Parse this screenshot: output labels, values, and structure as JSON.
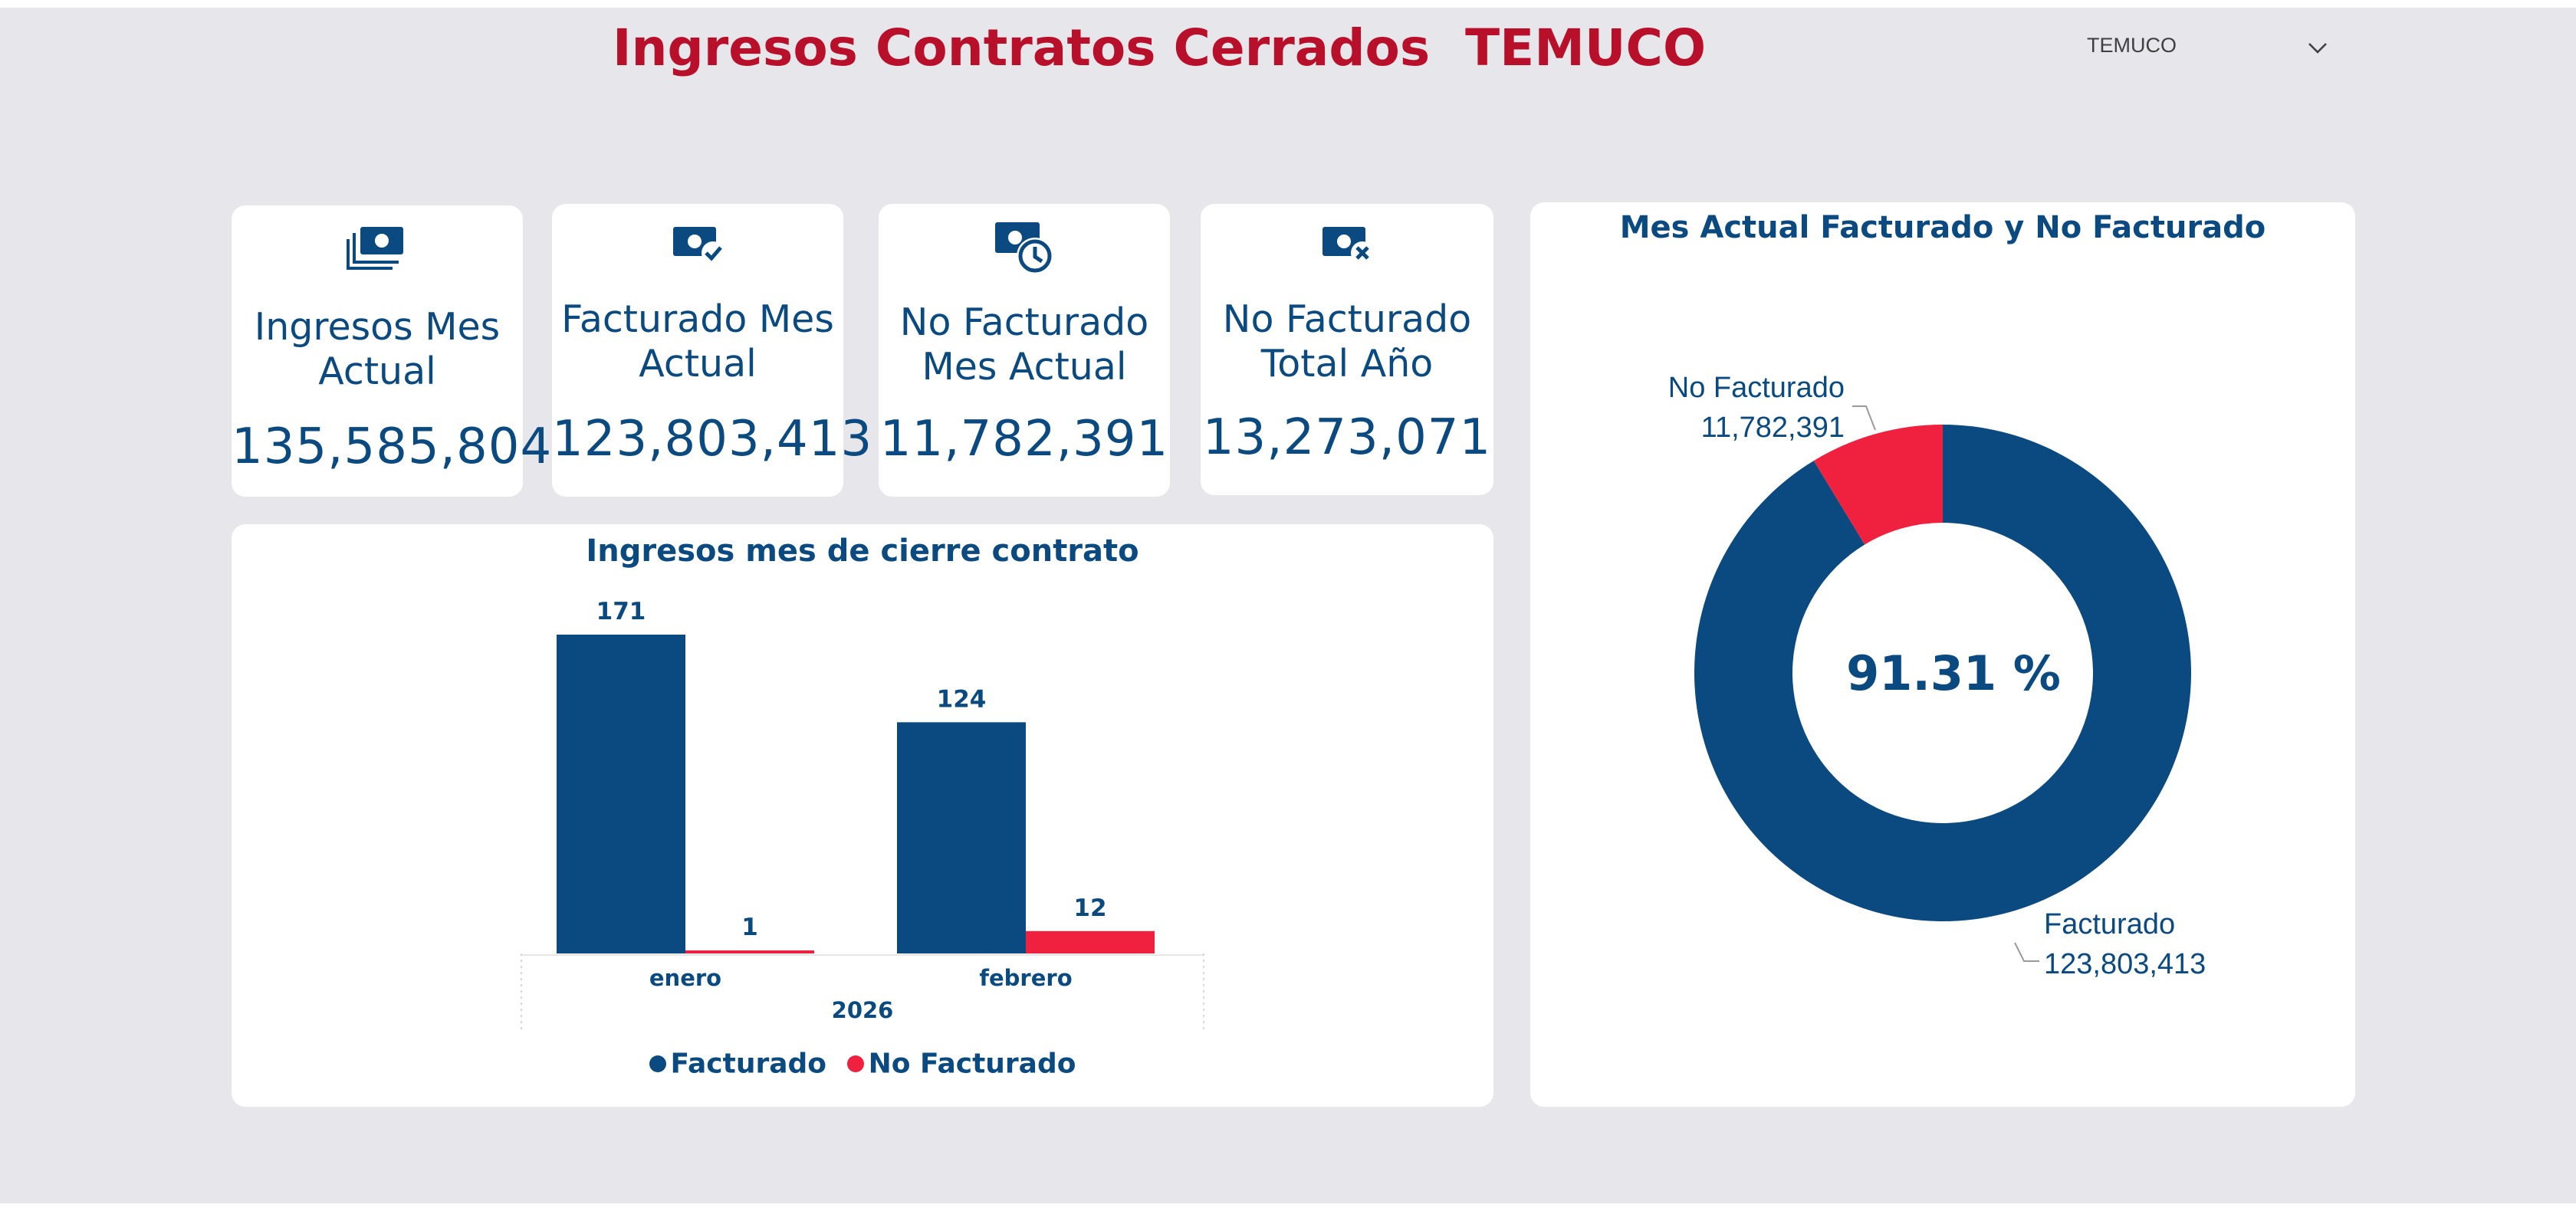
{
  "header": {
    "title": "Ingresos Contratos Cerrados  TEMUCO"
  },
  "filter": {
    "selected": "TEMUCO"
  },
  "kpis": [
    {
      "label_line1": "Ingresos Mes",
      "label_line2": "Actual",
      "value": "135,585,804",
      "icon": "money-stack-icon"
    },
    {
      "label_line1": "Facturado Mes",
      "label_line2": "Actual",
      "value": "123,803,413",
      "icon": "money-check-icon"
    },
    {
      "label_line1": "No Facturado",
      "label_line2": "Mes Actual",
      "value": "11,782,391",
      "icon": "money-clock-icon"
    },
    {
      "label_line1": "No Facturado",
      "label_line2": "Total Año",
      "value": "13,273,071",
      "icon": "money-x-icon"
    }
  ],
  "colors": {
    "navy": "#0b4a80",
    "red": "#f0213f",
    "title_red": "#b8102a"
  },
  "chart_data": [
    {
      "type": "bar",
      "title": "Ingresos mes de cierre contrato",
      "categories": [
        "enero",
        "febrero"
      ],
      "group_label": "2026",
      "series": [
        {
          "name": "Facturado",
          "values": [
            171,
            124
          ],
          "labels": [
            "171",
            "124"
          ],
          "color": "#0b4a80"
        },
        {
          "name": "No Facturado",
          "values": [
            1,
            12
          ],
          "labels": [
            "1",
            "12"
          ],
          "color": "#f0213f"
        }
      ],
      "ylim": [
        0,
        171
      ],
      "legend": "bottom-center"
    },
    {
      "type": "pie",
      "title": "Mes Actual Facturado y No Facturado",
      "center_label": "91.31 %",
      "slices": [
        {
          "name": "Facturado",
          "value": 123803413,
          "label": "123,803,413",
          "color": "#0b4a80"
        },
        {
          "name": "No Facturado",
          "value": 11782391,
          "label": "11,782,391",
          "color": "#f0213f"
        }
      ]
    }
  ]
}
